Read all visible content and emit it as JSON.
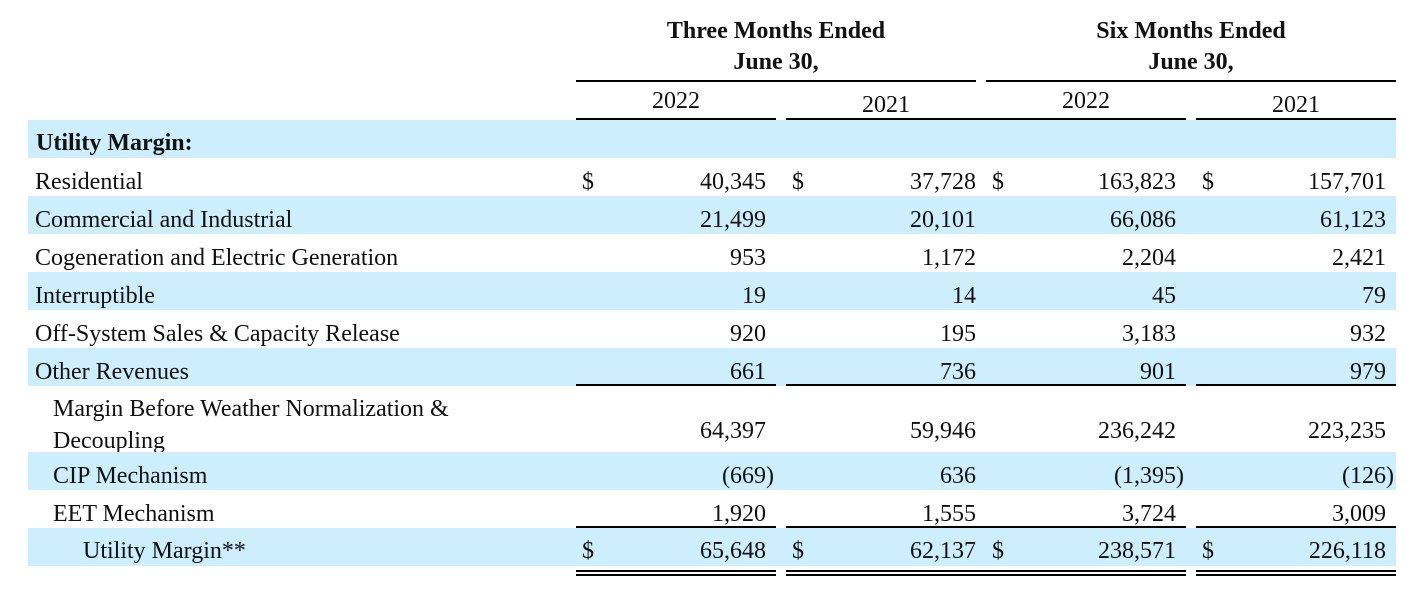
{
  "header": {
    "three_months_line1": "Three Months Ended",
    "three_months_line2": "June 30,",
    "six_months_line1": "Six Months Ended",
    "six_months_line2": "June 30,",
    "years": [
      "2022",
      "2021",
      "2022",
      "2021"
    ]
  },
  "section_title": "Utility Margin:",
  "currency_symbol": "$",
  "rows": [
    {
      "label": "Residential",
      "values": [
        "40,345",
        "37,728",
        "163,823",
        "157,701"
      ]
    },
    {
      "label": "Commercial and Industrial",
      "values": [
        "21,499",
        "20,101",
        "66,086",
        "61,123"
      ]
    },
    {
      "label": "Cogeneration and Electric Generation",
      "values": [
        "953",
        "1,172",
        "2,204",
        "2,421"
      ]
    },
    {
      "label": "Interruptible",
      "values": [
        "19",
        "14",
        "45",
        "79"
      ]
    },
    {
      "label": "Off-System Sales & Capacity Release",
      "values": [
        "920",
        "195",
        "3,183",
        "932"
      ]
    },
    {
      "label": "Other Revenues",
      "values": [
        "661",
        "736",
        "901",
        "979"
      ]
    },
    {
      "label_line1": "Margin Before Weather Normalization &",
      "label_line2": "Decoupling",
      "values": [
        "64,397",
        "59,946",
        "236,242",
        "223,235"
      ]
    },
    {
      "label": "CIP Mechanism",
      "values": [
        "(669)",
        "636",
        "(1,395)",
        "(126)"
      ]
    },
    {
      "label": "EET Mechanism",
      "values": [
        "1,920",
        "1,555",
        "3,724",
        "3,009"
      ]
    },
    {
      "label": "Utility Margin**",
      "values": [
        "65,648",
        "62,137",
        "238,571",
        "226,118"
      ]
    }
  ],
  "colors": {
    "row_shade": "#cdeefc",
    "text": "#111111"
  }
}
